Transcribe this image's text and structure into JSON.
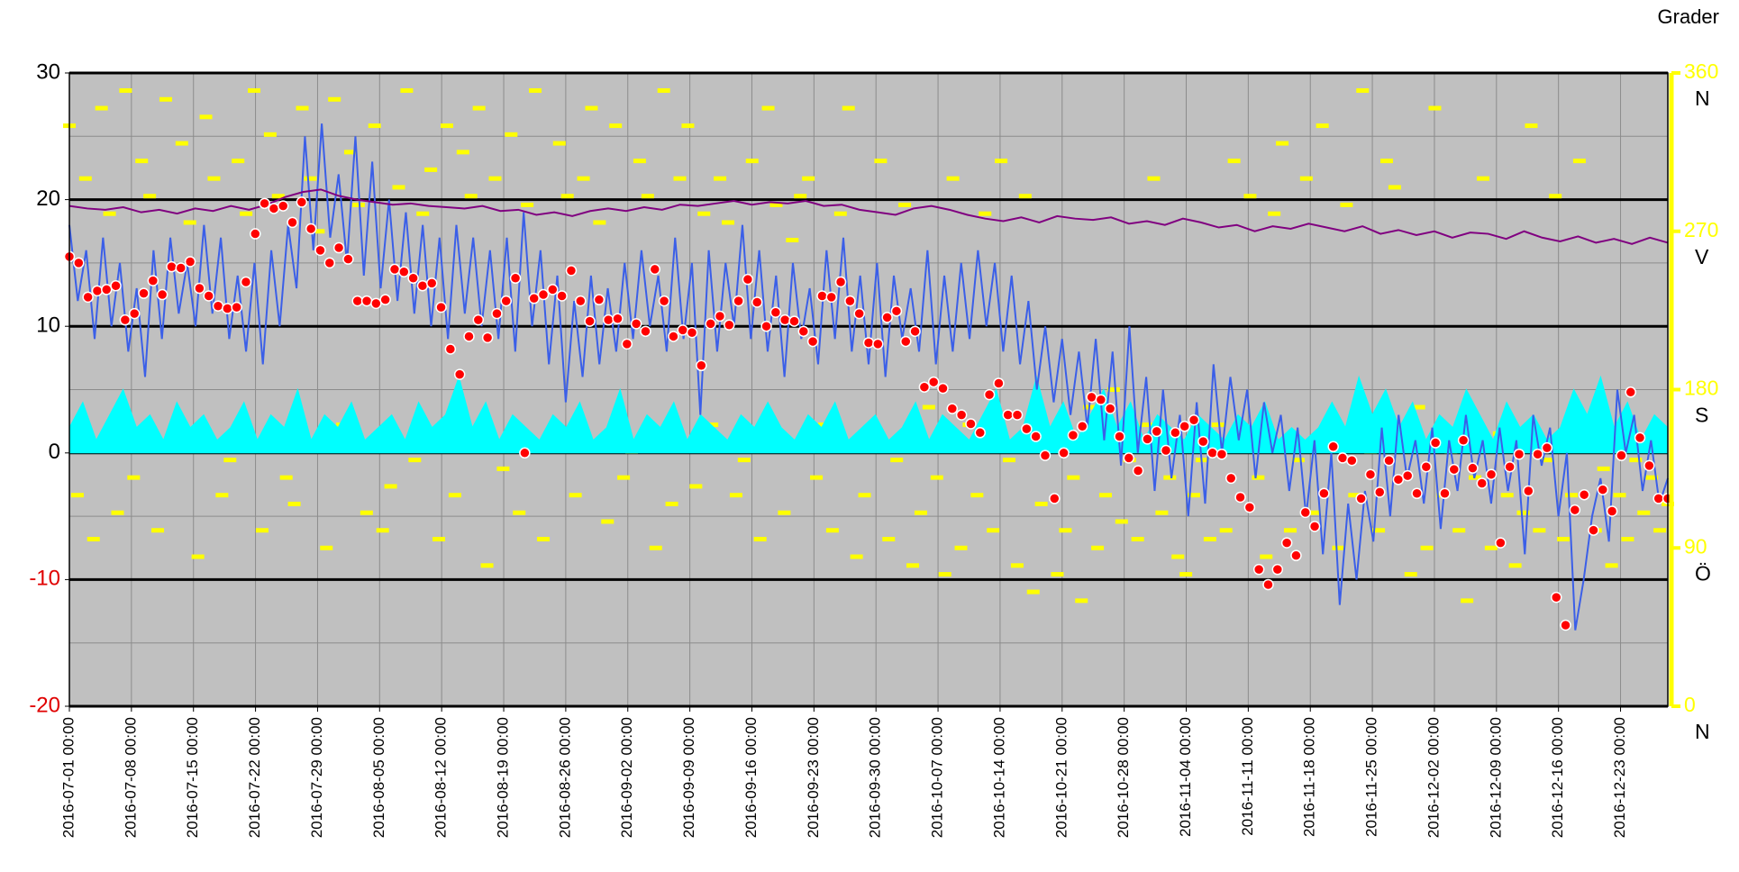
{
  "chart_data": {
    "type": "line",
    "y2_title": "Grader",
    "xlim": [
      "2016-07-01 00:00",
      "2016-12-28 08:00"
    ],
    "xticks": [
      "2016-07-01 00:00",
      "2016-07-08 00:00",
      "2016-07-15 00:00",
      "2016-07-22 00:00",
      "2016-07-29 00:00",
      "2016-08-05 00:00",
      "2016-08-12 00:00",
      "2016-08-19 00:00",
      "2016-08-26 00:00",
      "2016-09-02 00:00",
      "2016-09-09 00:00",
      "2016-09-16 00:00",
      "2016-09-23 00:00",
      "2016-09-30 00:00",
      "2016-10-07 00:00",
      "2016-10-14 00:00",
      "2016-10-21 00:00",
      "2016-10-28 00:00",
      "2016-11-04 00:00",
      "2016-11-11 00:00",
      "2016-11-18 00:00",
      "2016-11-25 00:00",
      "2016-12-02 00:00",
      "2016-12-09 00:00",
      "2016-12-16 00:00",
      "2016-12-23 00:00"
    ],
    "ylim": [
      -20,
      30
    ],
    "yticks": [
      30,
      20,
      10,
      0,
      -10,
      -20
    ],
    "yminor": [
      25,
      15,
      5,
      -5,
      -15
    ],
    "negative_tick_color": "#e00000",
    "y2lim": [
      0,
      360
    ],
    "y2ticks": [
      0,
      90,
      180,
      270,
      360
    ],
    "y2tick_names": [
      "N",
      "Ö",
      "S",
      "V",
      "N"
    ],
    "grid": true,
    "series": [
      {
        "style": "dash",
        "axis": "y2",
        "color": "#ffff00",
        "values": [
          330,
          120,
          300,
          95,
          340,
          280,
          110,
          350,
          130,
          310,
          290,
          100,
          345,
          150,
          320,
          275,
          85,
          335,
          300,
          120,
          140,
          310,
          280,
          350,
          100,
          325,
          290,
          130,
          115,
          340,
          300,
          270,
          90,
          345,
          160,
          315,
          285,
          110,
          330,
          100,
          125,
          295,
          350,
          140,
          280,
          305,
          95,
          330,
          120,
          315,
          290,
          340,
          80,
          300,
          135,
          325,
          110,
          285,
          350,
          95,
          150,
          320,
          290,
          120,
          300,
          340,
          275,
          105,
          330,
          130,
          145,
          310,
          290,
          90,
          350,
          115,
          300,
          330,
          125,
          280,
          160,
          300,
          275,
          120,
          140,
          310,
          95,
          340,
          285,
          110,
          265,
          290,
          300,
          130,
          160,
          100,
          280,
          340,
          85,
          120,
          150,
          310,
          95,
          140,
          285,
          80,
          110,
          170,
          130,
          75,
          300,
          90,
          160,
          120,
          280,
          100,
          310,
          140,
          80,
          290,
          65,
          115,
          150,
          75,
          100,
          130,
          60,
          170,
          90,
          120,
          180,
          105,
          140,
          95,
          160,
          300,
          110,
          130,
          85,
          75,
          120,
          140,
          95,
          160,
          100,
          310,
          150,
          290,
          130,
          85,
          280,
          320,
          100,
          140,
          300,
          110,
          330,
          160,
          90,
          285,
          120,
          350,
          145,
          100,
          310,
          295,
          130,
          75,
          170,
          90,
          340,
          120,
          145,
          100,
          60,
          130,
          300,
          90,
          155,
          120,
          80,
          110,
          330,
          100,
          140,
          290,
          95,
          120,
          310,
          150,
          100,
          135,
          80,
          120,
          95,
          140,
          110,
          130,
          100,
          115
        ]
      },
      {
        "style": "area",
        "color": "#00ffff",
        "values": [
          2,
          4,
          1,
          3,
          5,
          2,
          3,
          1,
          4,
          2,
          3,
          1,
          2,
          4,
          1,
          3,
          2,
          5,
          1,
          3,
          2,
          4,
          1,
          2,
          3,
          1,
          4,
          2,
          3,
          6,
          2,
          4,
          1,
          3,
          2,
          1,
          3,
          2,
          4,
          1,
          2,
          5,
          1,
          3,
          2,
          4,
          1,
          3,
          2,
          1,
          3,
          2,
          4,
          2,
          1,
          3,
          2,
          4,
          1,
          2,
          3,
          1,
          2,
          4,
          1,
          3,
          2,
          1,
          3,
          5,
          1,
          2,
          6,
          2,
          4,
          1,
          3,
          5,
          2,
          4,
          1,
          3,
          2,
          1,
          3,
          2,
          1,
          3,
          2,
          4,
          1,
          2,
          1,
          2,
          4,
          2,
          6,
          3,
          5,
          2,
          4,
          1,
          3,
          2,
          5,
          3,
          1,
          4,
          2,
          3,
          1,
          2,
          5,
          3,
          6,
          2,
          4,
          1,
          3,
          2
        ]
      },
      {
        "style": "line",
        "color": "#3b5fe8",
        "values": [
          18,
          12,
          16,
          9,
          17,
          10,
          15,
          8,
          13,
          6,
          16,
          9,
          17,
          11,
          15,
          10,
          18,
          11,
          17,
          9,
          14,
          8,
          15,
          7,
          16,
          10,
          18,
          13,
          25,
          16,
          26,
          17,
          22,
          15,
          25,
          14,
          23,
          13,
          20,
          12,
          19,
          11,
          18,
          10,
          17,
          9,
          18,
          11,
          17,
          10,
          16,
          9,
          17,
          8,
          19,
          10,
          16,
          7,
          14,
          4,
          12,
          6,
          14,
          7,
          13,
          8,
          15,
          9,
          16,
          10,
          14,
          8,
          17,
          9,
          15,
          3,
          16,
          8,
          15,
          10,
          18,
          9,
          16,
          8,
          14,
          6,
          15,
          9,
          13,
          7,
          16,
          9,
          17,
          8,
          14,
          7,
          15,
          6,
          14,
          9,
          13,
          8,
          16,
          7,
          14,
          8,
          15,
          9,
          16,
          10,
          15,
          8,
          14,
          7,
          12,
          5,
          10,
          4,
          9,
          3,
          8,
          2,
          9,
          1,
          8,
          -1,
          10,
          0,
          6,
          -3,
          5,
          -2,
          3,
          -5,
          4,
          -4,
          7,
          0,
          6,
          1,
          5,
          -2,
          4,
          0,
          3,
          -3,
          2,
          -5,
          1,
          -8,
          0,
          -12,
          -4,
          -10,
          -3,
          -7,
          2,
          -5,
          3,
          -2,
          1,
          -4,
          2,
          -6,
          1,
          -3,
          3,
          -2,
          1,
          -4,
          2,
          -3,
          1,
          -8,
          3,
          -1,
          2,
          -5,
          0,
          -14,
          -10,
          -5,
          -2,
          -7,
          5,
          0,
          3,
          -3,
          1,
          -4,
          -2
        ]
      },
      {
        "style": "line",
        "color": "#800080",
        "values": [
          19.5,
          19.3,
          19.2,
          19.4,
          19,
          19.2,
          18.9,
          19.3,
          19.1,
          19.5,
          19.2,
          19.6,
          20.2,
          20.6,
          20.8,
          20.3,
          20,
          19.8,
          19.6,
          19.7,
          19.5,
          19.4,
          19.3,
          19.5,
          19.1,
          19.2,
          18.8,
          19,
          18.7,
          19.1,
          19.3,
          19.1,
          19.4,
          19.2,
          19.6,
          19.5,
          19.7,
          19.9,
          19.6,
          19.8,
          19.7,
          19.9,
          19.5,
          19.6,
          19.2,
          19,
          18.8,
          19.3,
          19.5,
          19.2,
          18.8,
          18.5,
          18.3,
          18.6,
          18.2,
          18.7,
          18.5,
          18.4,
          18.6,
          18.1,
          18.3,
          18,
          18.5,
          18.2,
          17.8,
          18,
          17.5,
          17.9,
          17.7,
          18.1,
          17.8,
          17.5,
          17.9,
          17.3,
          17.6,
          17.2,
          17.5,
          17,
          17.4,
          17.3,
          16.9,
          17.5,
          17,
          16.7,
          17.1,
          16.6,
          16.9,
          16.5,
          17,
          16.6
        ]
      },
      {
        "style": "markers",
        "color": "#ff0000",
        "values": [
          15.5,
          15,
          12.3,
          12.8,
          12.9,
          13.2,
          10.5,
          11,
          12.6,
          13.6,
          12.5,
          14.7,
          14.6,
          15.1,
          13,
          12.4,
          11.6,
          11.4,
          11.5,
          13.5,
          17.3,
          19.7,
          19.3,
          19.5,
          18.2,
          19.8,
          17.7,
          16,
          15,
          16.2,
          15.3,
          12,
          12,
          11.8,
          12.1,
          14.5,
          14.3,
          13.8,
          13.2,
          13.4,
          11.5,
          8.2,
          6.2,
          9.2,
          10.5,
          9.1,
          11,
          12,
          13.8,
          0,
          12.2,
          12.5,
          12.9,
          12.4,
          14.4,
          12,
          10.4,
          12.1,
          10.5,
          10.6,
          8.6,
          10.2,
          9.6,
          14.5,
          12,
          9.2,
          9.7,
          9.5,
          6.9,
          10.2,
          10.8,
          10.1,
          12,
          13.7,
          11.9,
          10,
          11.1,
          10.5,
          10.4,
          9.6,
          8.8,
          12.4,
          12.3,
          13.5,
          12,
          11,
          8.7,
          8.6,
          10.7,
          11.2,
          8.8,
          9.6,
          5.2,
          5.6,
          5.1,
          3.5,
          3,
          2.3,
          1.6,
          4.6,
          5.5,
          3,
          3,
          1.9,
          1.3,
          -0.2,
          -3.6,
          0,
          1.4,
          2.1,
          4.4,
          4.2,
          3.5,
          1.3,
          -0.4,
          -1.4,
          1.1,
          1.7,
          0.2,
          1.6,
          2.1,
          2.6,
          0.9,
          0,
          -0.1,
          -2,
          -3.5,
          -4.3,
          -9.2,
          -10.4,
          -9.2,
          -7.1,
          -8.1,
          -4.7,
          -5.8,
          -3.2,
          0.5,
          -0.4,
          -0.6,
          -3.6,
          -1.7,
          -3.1,
          -0.6,
          -2.1,
          -1.8,
          -3.2,
          -1.1,
          0.8,
          -3.2,
          -1.3,
          1,
          -1.2,
          -2.4,
          -1.7,
          -7.1,
          -1.1,
          -0.1,
          -3,
          -0.1,
          0.4,
          -11.4,
          -13.6,
          -4.5,
          -3.3,
          -6.1,
          -2.9,
          -4.6,
          -0.2,
          4.8,
          1.2,
          -1,
          -3.6,
          -3.6
        ]
      }
    ]
  }
}
